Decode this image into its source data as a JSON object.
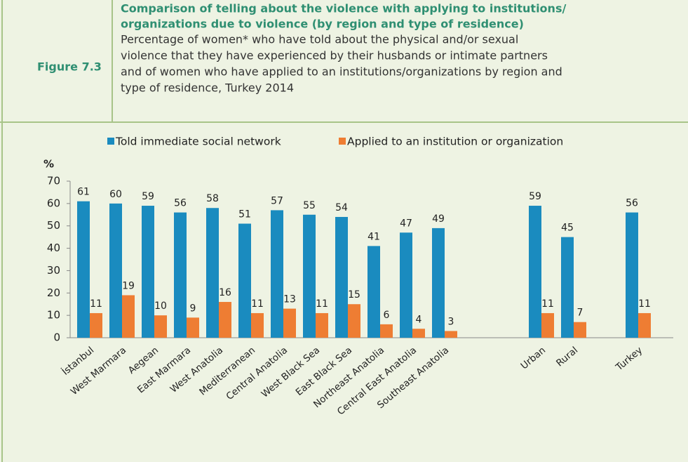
{
  "header": {
    "figure": "Figure 7.3",
    "title": [
      "Comparison of telling about the violence with applying to institutions/",
      "organizations due to violence (by region and type of residence)"
    ],
    "subtitle": [
      "Percentage of women* who have told about the physical and/or sexual",
      "violence that they have experienced by their husbands or intimate partners",
      "and of women who have applied to an institutions/organizations by region and",
      "type of residence, Turkey 2014"
    ]
  },
  "chart_data": {
    "type": "bar",
    "y_label": "%",
    "categories": [
      "İstanbul",
      "West Marmara",
      "Aegean",
      "East Marmara",
      "West Anatolia",
      "Mediterranean",
      "Central Anatolia",
      "West Black Sea",
      "East Black Sea",
      "Northeast Anatolia",
      "Central East Anatolia",
      "Southeast Anatolia",
      null,
      null,
      "Urban",
      "Rural",
      null,
      "Turkey"
    ],
    "series": [
      {
        "name": "Told immediate social network",
        "color": "#1a8bbf",
        "values": [
          61,
          60,
          59,
          56,
          58,
          51,
          57,
          55,
          54,
          41,
          47,
          49,
          null,
          null,
          59,
          45,
          null,
          56
        ]
      },
      {
        "name": "Applied to an institution or organization",
        "color": "#ee7d33",
        "values": [
          11,
          19,
          10,
          9,
          16,
          11,
          13,
          11,
          15,
          6,
          4,
          3,
          null,
          null,
          11,
          7,
          null,
          11
        ]
      }
    ],
    "ylim": [
      0,
      70
    ],
    "yticks": [
      0,
      10,
      20,
      30,
      40,
      50,
      60,
      70
    ],
    "grid": false,
    "legend": "top"
  }
}
